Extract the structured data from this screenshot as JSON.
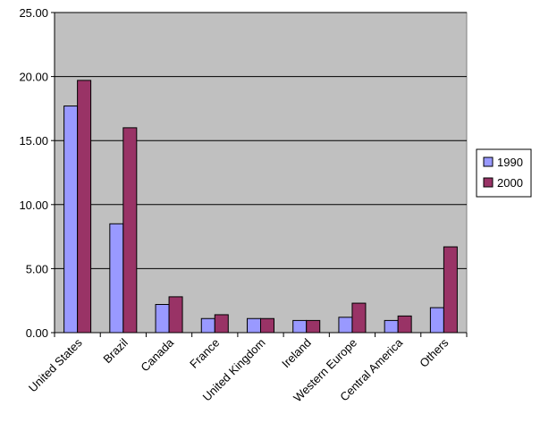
{
  "chart_data": {
    "type": "bar",
    "categories": [
      "United States",
      "Brazil",
      "Canada",
      "France",
      "United Kingdom",
      "Ireland",
      "Western Europe",
      "Central America",
      "Others"
    ],
    "series": [
      {
        "name": "1990",
        "values": [
          17.7,
          8.5,
          2.2,
          1.1,
          1.1,
          0.95,
          1.2,
          0.95,
          1.95
        ],
        "color": "#9999ff"
      },
      {
        "name": "2000",
        "values": [
          19.7,
          16.0,
          2.8,
          1.4,
          1.1,
          0.95,
          2.3,
          1.3,
          6.7
        ],
        "color": "#993366"
      }
    ],
    "yticks": [
      "0.00",
      "5.00",
      "10.00",
      "15.00",
      "20.00",
      "25.00"
    ],
    "ylim": [
      0,
      25
    ],
    "grid": true,
    "plot_background": "#c0c0c0",
    "legend_position": "right",
    "title": "",
    "xlabel": "",
    "ylabel": ""
  }
}
